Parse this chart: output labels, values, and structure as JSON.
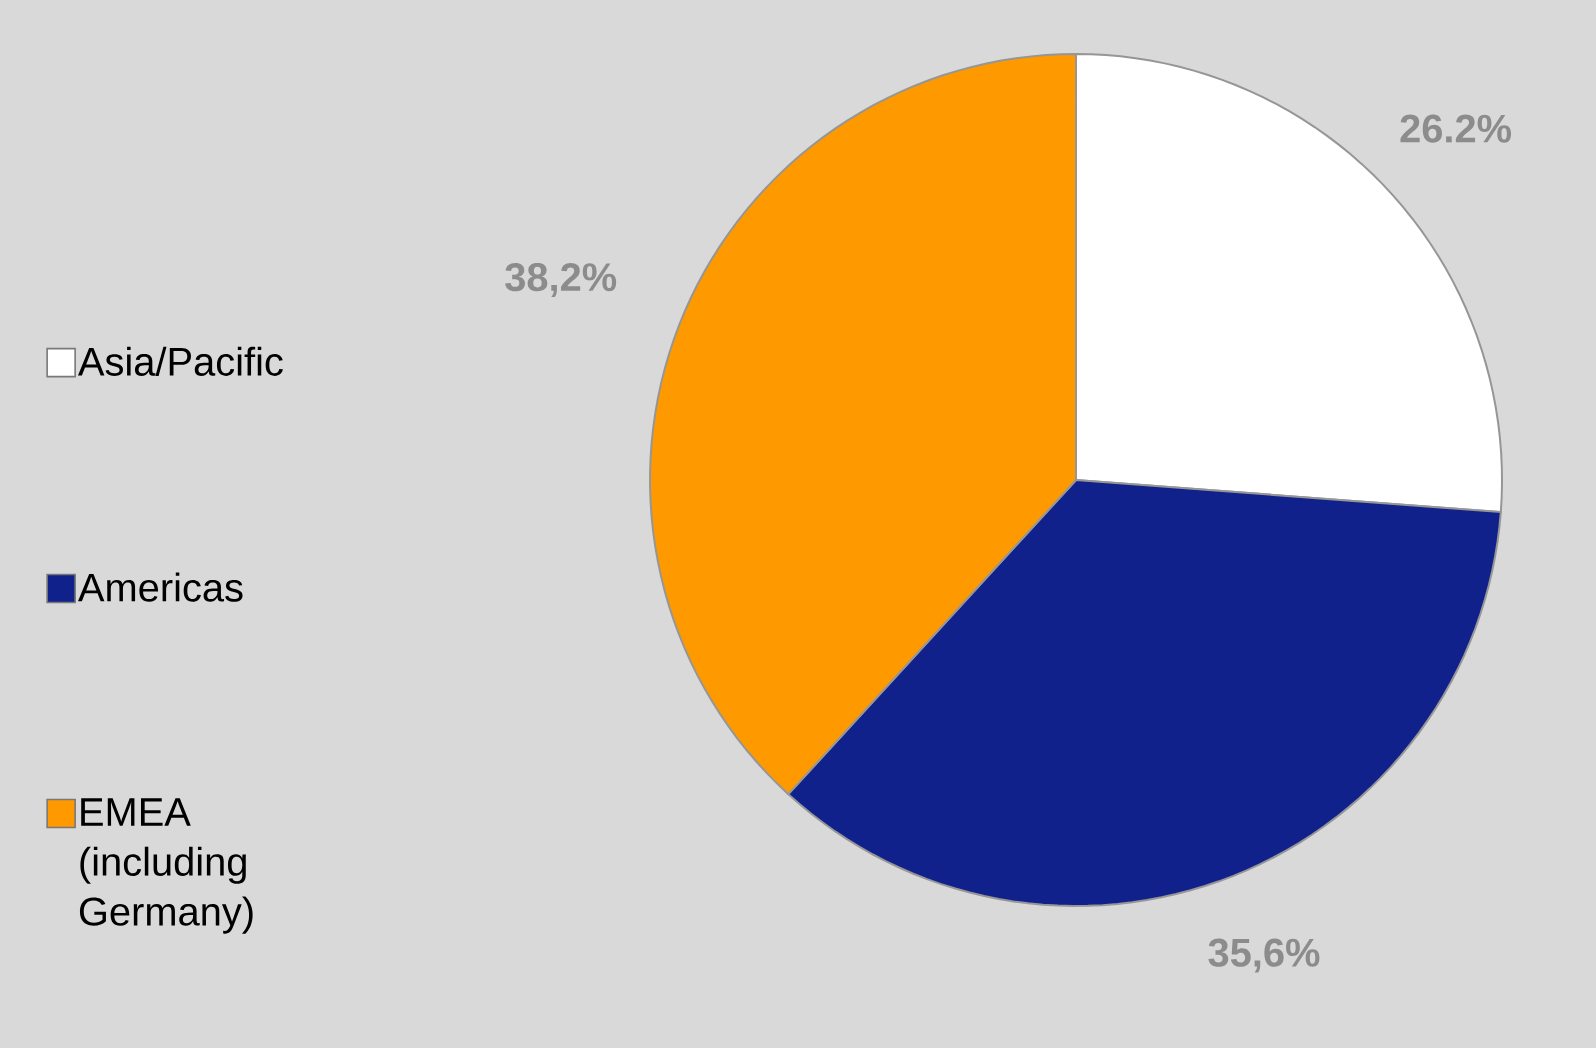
{
  "chart_data": {
    "type": "pie",
    "categories": [
      "Asia/Pacific",
      "Americas",
      "EMEA (including Germany)"
    ],
    "values": [
      26.2,
      35.6,
      38.2
    ],
    "value_labels": [
      "26.2%",
      "35,6%",
      "38,2%"
    ],
    "colors": [
      "#ffffff",
      "#10218b",
      "#ff9900"
    ],
    "legend": "left"
  }
}
